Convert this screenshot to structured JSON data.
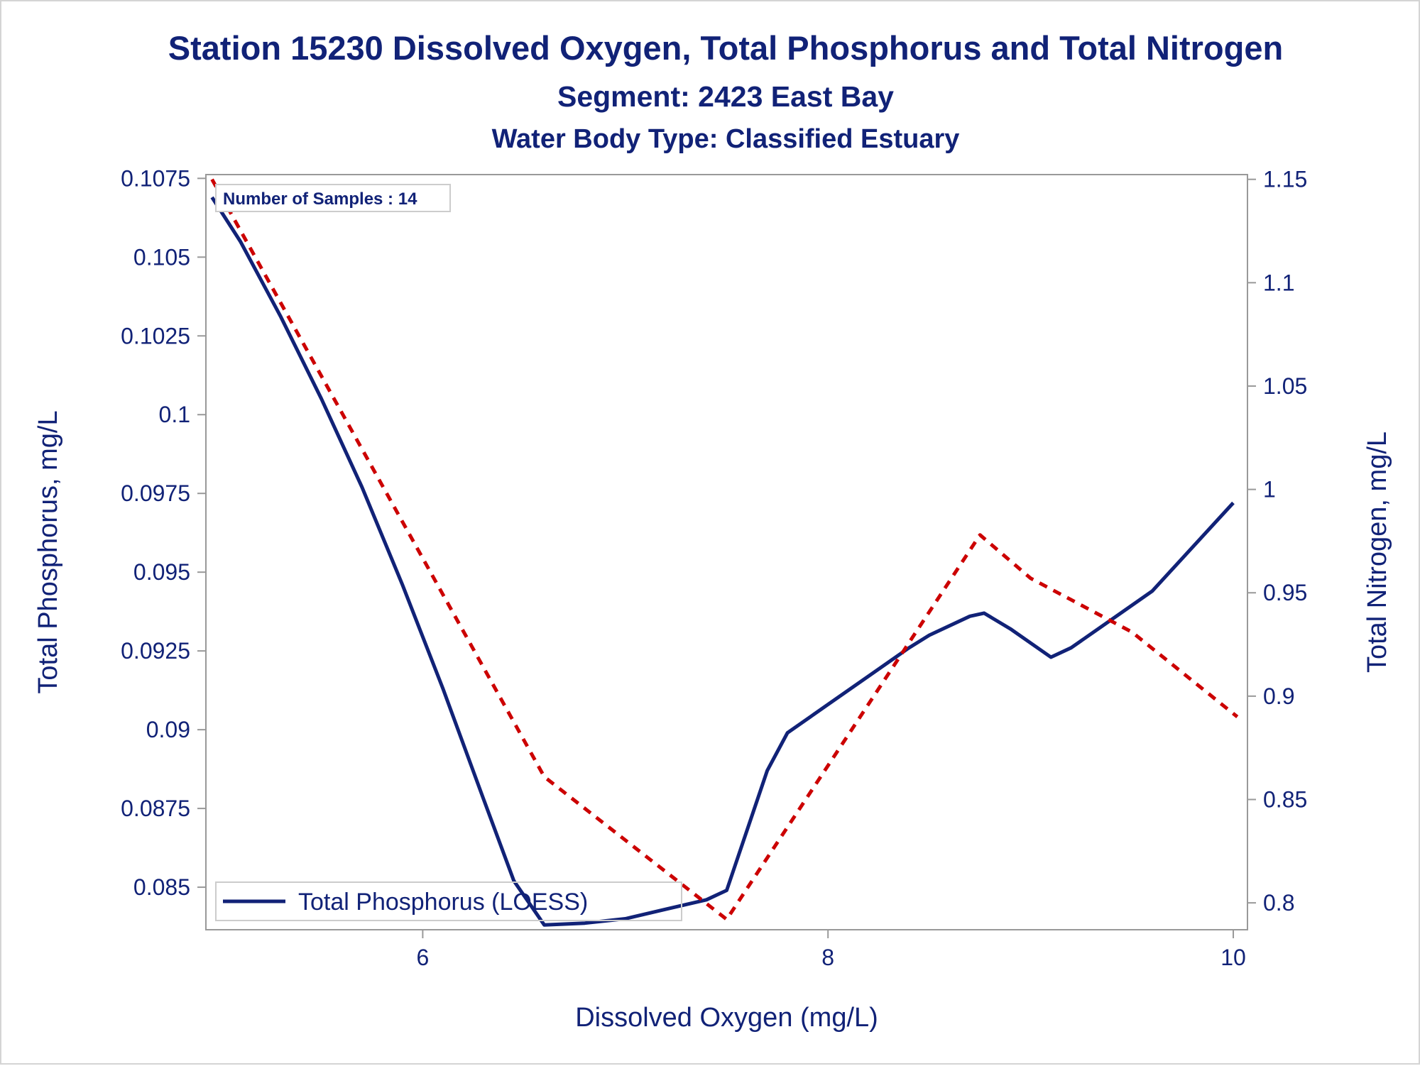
{
  "chart_data": {
    "type": "line",
    "title": "Station 15230  Dissolved Oxygen, Total Phosphorus and Total Nitrogen",
    "subtitle": "Segment: 2423  East Bay",
    "subtitle2": "Water Body Type: Classified Estuary",
    "xlabel": "Dissolved Oxygen (mg/L)",
    "ylabel_left": "Total Phosphorus, mg/L",
    "ylabel_right": "Total Nitrogen, mg/L",
    "xlim": [
      4.93,
      10.07
    ],
    "ylim_left": [
      0.08365,
      0.10762
    ],
    "ylim_right": [
      0.787,
      1.1523
    ],
    "x_ticks": [
      6,
      8,
      10
    ],
    "x_tick_labels": [
      "6",
      "8",
      "10"
    ],
    "y_left_ticks": [
      0.085,
      0.0875,
      0.09,
      0.0925,
      0.095,
      0.0975,
      0.1,
      0.1025,
      0.105,
      0.1075
    ],
    "y_left_tick_labels": [
      "0.085",
      "0.0875",
      "0.09",
      "0.0925",
      "0.095",
      "0.0975",
      "0.1",
      "0.1025",
      "0.105",
      "0.1075"
    ],
    "y_right_ticks": [
      0.8,
      0.85,
      0.9,
      0.95,
      1.0,
      1.05,
      1.1,
      1.15
    ],
    "y_right_tick_labels": [
      "0.8",
      "0.85",
      "0.9",
      "0.95",
      "1",
      "1.05",
      "1.1",
      "1.15"
    ],
    "annotation": "Number of Samples : 14",
    "legend_position": "bottom-left",
    "series": [
      {
        "name": "Total Phosphorus (LOESS)",
        "axis": "left",
        "color": "#112277",
        "style": "solid",
        "x": [
          4.96,
          5.1,
          5.3,
          5.5,
          5.7,
          5.9,
          6.1,
          6.3,
          6.45,
          6.6,
          6.8,
          7.0,
          7.2,
          7.4,
          7.5,
          7.7,
          7.8,
          8.0,
          8.2,
          8.4,
          8.5,
          8.7,
          8.77,
          8.9,
          9.1,
          9.2,
          9.4,
          9.6,
          9.8,
          10.0
        ],
        "y": [
          0.1069,
          0.1055,
          0.1031,
          0.1005,
          0.0977,
          0.0946,
          0.0913,
          0.0878,
          0.0852,
          0.0838,
          0.08386,
          0.084,
          0.0843,
          0.0846,
          0.0849,
          0.0887,
          0.0899,
          0.0908,
          0.0917,
          0.0926,
          0.093,
          0.0936,
          0.0937,
          0.0932,
          0.0923,
          0.0926,
          0.0935,
          0.0944,
          0.0958,
          0.0972
        ]
      },
      {
        "name": "",
        "axis": "right",
        "color": "#cc0000",
        "style": "dashed",
        "x": [
          4.96,
          6.6,
          7.5,
          8.75,
          9.0,
          9.5,
          10.02
        ],
        "y": [
          1.15,
          0.861,
          0.792,
          0.978,
          0.957,
          0.931,
          0.89
        ]
      }
    ]
  }
}
